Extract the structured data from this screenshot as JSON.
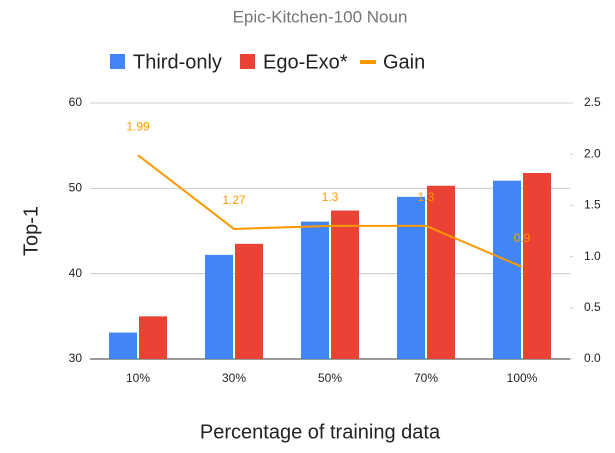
{
  "chart_data": {
    "type": "bar",
    "title": "Epic-Kitchen-100 Noun",
    "x_label": "Percentage of training data",
    "y_label": "Top-1",
    "categories": [
      "10%",
      "30%",
      "50%",
      "70%",
      "100%"
    ],
    "series": [
      {
        "name": "Third-only",
        "color": "#4285f4",
        "values": [
          33.1,
          42.2,
          46.1,
          49.0,
          50.9
        ]
      },
      {
        "name": "Ego-Exo*",
        "color": "#ea4335",
        "values": [
          35.0,
          43.5,
          47.4,
          50.3,
          51.8
        ]
      },
      {
        "name": "Gain",
        "type": "line",
        "axis": "y2",
        "color": "#ff9900",
        "values": [
          1.99,
          1.27,
          1.3,
          1.3,
          0.9
        ]
      }
    ],
    "ylim": [
      30,
      60
    ],
    "yticks": [
      30,
      40,
      50,
      60
    ],
    "y2lim": [
      0,
      2.5
    ],
    "y2ticks": [
      {
        "value": 0,
        "label": "0.0"
      },
      0.5,
      {
        "value": 1,
        "label": "1.0"
      },
      1.5,
      {
        "value": 2,
        "label": "2.0"
      },
      2.5
    ],
    "grid": true,
    "legend": "top"
  }
}
